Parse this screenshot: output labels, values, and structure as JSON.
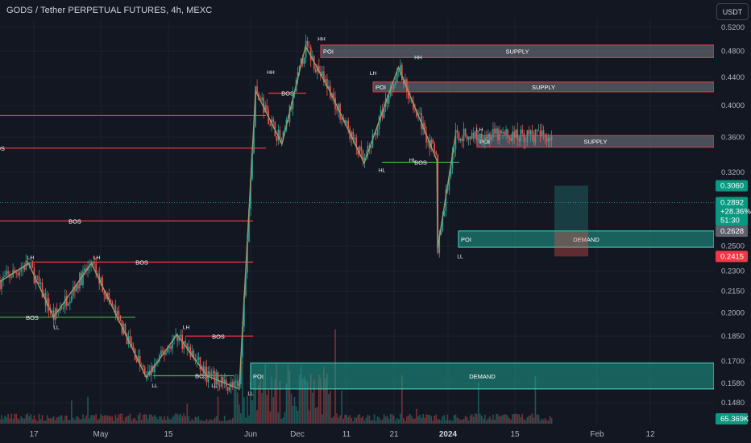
{
  "header": {
    "title": "GODS / Tether PERPETUAL FUTURES, 4h, MEXC",
    "currency": "USDT"
  },
  "colors": {
    "background": "#131722",
    "up": "#26a69a",
    "down": "#ef5350",
    "supply_zone": "#787b86",
    "demand_zone": "#1e9e8e",
    "structure_line": "#9e9a6a",
    "bos_red": "#f23645",
    "bos_green": "#4caf50"
  },
  "chart_data": {
    "type": "candlestick",
    "title": "GODS / Tether PERPETUAL FUTURES, 4h, MEXC",
    "ylim": [
      0.138,
      0.534
    ],
    "y_scale": "log",
    "y_ticks": [
      "0.5200",
      "0.4800",
      "0.4400",
      "0.4000",
      "0.3600",
      "0.3200",
      "0.3060",
      "0.2892",
      "0.2628",
      "0.2500",
      "0.2415",
      "0.2300",
      "0.2150",
      "0.2000",
      "0.1850",
      "0.1700",
      "0.1580",
      "0.1480"
    ],
    "x_ticks": [
      "17",
      "May",
      "15",
      "Jun",
      "Dec",
      "11",
      "21",
      "2024",
      "15",
      "Feb",
      "12"
    ],
    "price_labels": {
      "current": {
        "value": "0.2892",
        "change": "+28.36%",
        "countdown": "51:30"
      },
      "box_top": "0.3060",
      "box_mid": "0.2628",
      "box_bottom": "0.2415",
      "volume": "65.369K"
    },
    "zones": [
      {
        "type": "SUPPLY",
        "poi": "POI",
        "top": 0.49,
        "bottom": 0.47
      },
      {
        "type": "SUPPLY",
        "poi": "POI",
        "top": 0.433,
        "bottom": 0.419
      },
      {
        "type": "SUPPLY",
        "poi": "POI",
        "top": 0.362,
        "bottom": 0.348
      },
      {
        "type": "DEMAND",
        "poi": "POI",
        "top": 0.263,
        "bottom": 0.249
      },
      {
        "type": "DEMAND",
        "poi": "POI",
        "top": 0.169,
        "bottom": 0.155
      }
    ],
    "structure_labels": [
      "LH",
      "LH",
      "LL",
      "LL",
      "LH",
      "LL",
      "LL",
      "HH",
      "HH",
      "LH",
      "HH",
      "HL",
      "HL",
      "LH",
      "LL"
    ],
    "bos_labels": [
      "BOS",
      "BOS",
      "BOS",
      "BOS",
      "BOS",
      "BOS",
      "BOS",
      "BOS",
      "BOS"
    ],
    "zigzag": [
      {
        "t": 0.0,
        "p": 0.222
      },
      {
        "t": 0.04,
        "p": 0.236
      },
      {
        "t": 0.075,
        "p": 0.197
      },
      {
        "t": 0.128,
        "p": 0.236
      },
      {
        "t": 0.205,
        "p": 0.161
      },
      {
        "t": 0.248,
        "p": 0.186
      },
      {
        "t": 0.29,
        "p": 0.162
      },
      {
        "t": 0.335,
        "p": 0.155
      },
      {
        "t": 0.358,
        "p": 0.42
      },
      {
        "t": 0.395,
        "p": 0.352
      },
      {
        "t": 0.428,
        "p": 0.488
      },
      {
        "t": 0.462,
        "p": 0.42
      },
      {
        "t": 0.51,
        "p": 0.33
      },
      {
        "t": 0.558,
        "p": 0.455
      },
      {
        "t": 0.612,
        "p": 0.333
      },
      {
        "t": 0.613,
        "p": 0.248
      },
      {
        "t": 0.638,
        "p": 0.362
      }
    ]
  }
}
